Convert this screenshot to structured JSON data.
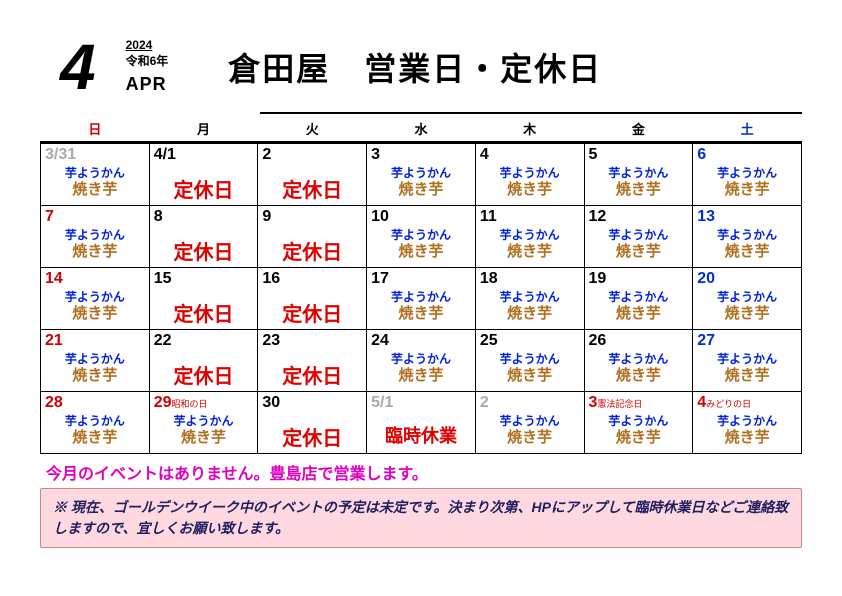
{
  "header": {
    "month_num": "4",
    "year": "2024",
    "era_year": "令和6年",
    "month_abbr": "APR",
    "title": "倉田屋　営業日・定休日"
  },
  "weekdays": {
    "sun": "日",
    "mon": "月",
    "tue": "火",
    "wed": "水",
    "thu": "木",
    "fri": "金",
    "sat": "土"
  },
  "open_text": {
    "line1": "芋ようかん",
    "line2": "焼き芋"
  },
  "closed_text": "定休日",
  "temp_closed_text": "臨時休業",
  "holidays": {
    "showa": "昭和の日",
    "kenpo": "憲法記念日",
    "midori": "みどりの日"
  },
  "weeks": [
    [
      {
        "num": "3/31",
        "cls": "gray",
        "type": "open"
      },
      {
        "num": "4/1",
        "cls": "",
        "type": "closed"
      },
      {
        "num": "2",
        "cls": "",
        "type": "closed"
      },
      {
        "num": "3",
        "cls": "",
        "type": "open"
      },
      {
        "num": "4",
        "cls": "",
        "type": "open"
      },
      {
        "num": "5",
        "cls": "",
        "type": "open"
      },
      {
        "num": "6",
        "cls": "sat",
        "type": "open"
      }
    ],
    [
      {
        "num": "7",
        "cls": "sun",
        "type": "open"
      },
      {
        "num": "8",
        "cls": "",
        "type": "closed"
      },
      {
        "num": "9",
        "cls": "",
        "type": "closed"
      },
      {
        "num": "10",
        "cls": "",
        "type": "open"
      },
      {
        "num": "11",
        "cls": "",
        "type": "open"
      },
      {
        "num": "12",
        "cls": "",
        "type": "open"
      },
      {
        "num": "13",
        "cls": "sat",
        "type": "open"
      }
    ],
    [
      {
        "num": "14",
        "cls": "sun",
        "type": "open"
      },
      {
        "num": "15",
        "cls": "",
        "type": "closed"
      },
      {
        "num": "16",
        "cls": "",
        "type": "closed"
      },
      {
        "num": "17",
        "cls": "",
        "type": "open"
      },
      {
        "num": "18",
        "cls": "",
        "type": "open"
      },
      {
        "num": "19",
        "cls": "",
        "type": "open"
      },
      {
        "num": "20",
        "cls": "sat",
        "type": "open"
      }
    ],
    [
      {
        "num": "21",
        "cls": "sun",
        "type": "open"
      },
      {
        "num": "22",
        "cls": "",
        "type": "closed"
      },
      {
        "num": "23",
        "cls": "",
        "type": "closed"
      },
      {
        "num": "24",
        "cls": "",
        "type": "open"
      },
      {
        "num": "25",
        "cls": "",
        "type": "open"
      },
      {
        "num": "26",
        "cls": "",
        "type": "open"
      },
      {
        "num": "27",
        "cls": "sat",
        "type": "open"
      }
    ],
    [
      {
        "num": "28",
        "cls": "sun",
        "type": "open"
      },
      {
        "num": "29",
        "cls": "hol",
        "type": "open",
        "hol": "showa"
      },
      {
        "num": "30",
        "cls": "",
        "type": "closed"
      },
      {
        "num": "5/1",
        "cls": "gray",
        "type": "temp_closed"
      },
      {
        "num": "2",
        "cls": "gray",
        "type": "open"
      },
      {
        "num": "3",
        "cls": "hol",
        "type": "open",
        "hol": "kenpo"
      },
      {
        "num": "4",
        "cls": "hol",
        "type": "open",
        "hol": "midori"
      }
    ]
  ],
  "notice1": "今月のイベントはありません。豊島店で営業します。",
  "notice2": "※ 現在、ゴールデンウイーク中のイベントの予定は未定です。決まり次第、HPにアップして臨時休業日などご連絡致しますので、宜しくお願い致します。"
}
